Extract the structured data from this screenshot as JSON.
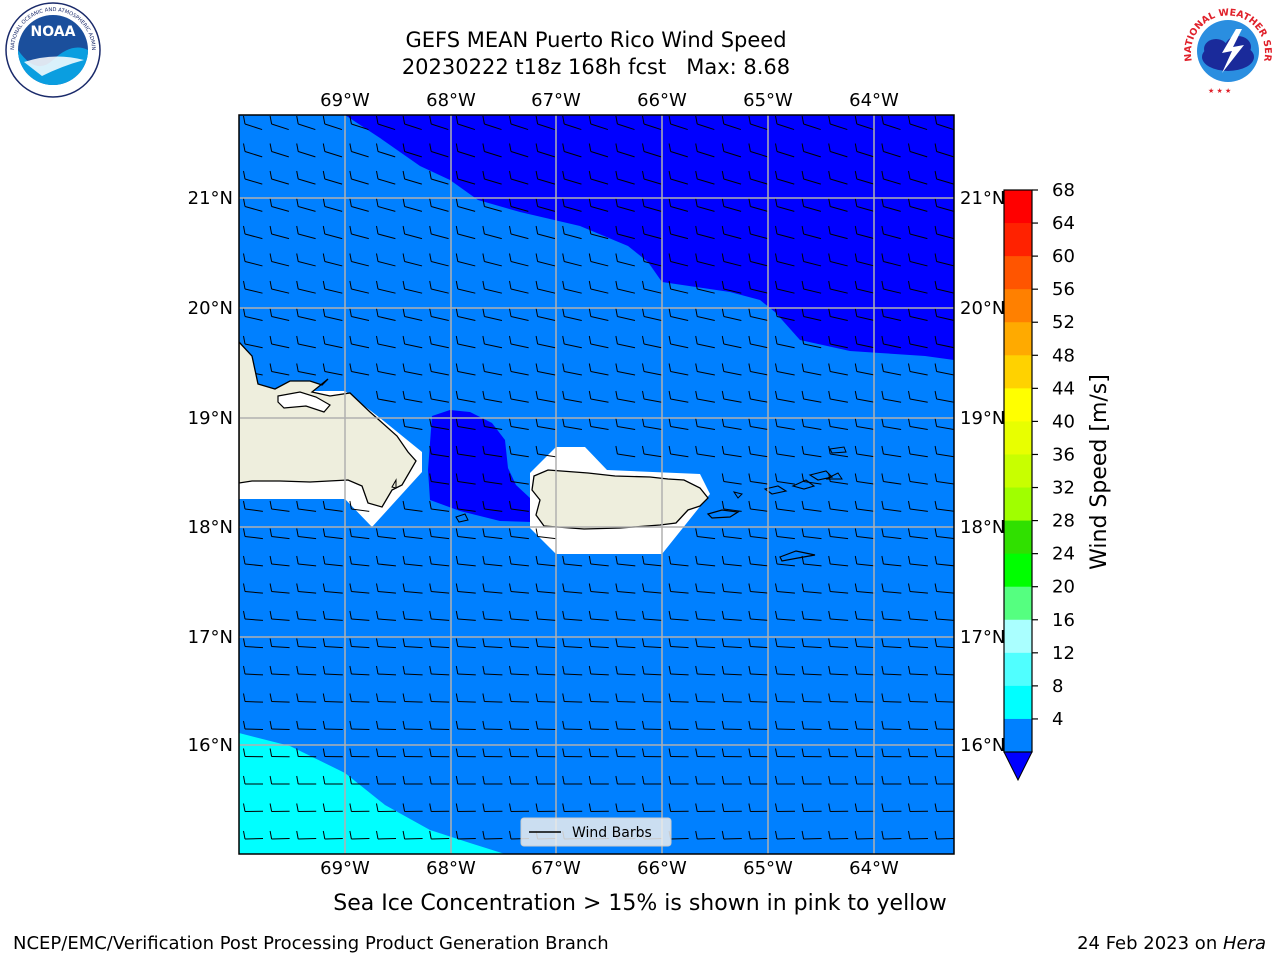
{
  "title_line1": "GEFS MEAN Puerto Rico Wind Speed",
  "title_line2": "20230222 t18z 168h fcst   Max: 8.68",
  "map": {
    "lon_labels": [
      "69°W",
      "68°W",
      "67°W",
      "66°W",
      "65°W",
      "64°W"
    ],
    "lat_labels": [
      "21°N",
      "20°N",
      "19°N",
      "18°N",
      "17°N",
      "16°N"
    ],
    "legend_label": "Wind Barbs",
    "fill_colors": {
      "band_4_8": "#0080ff",
      "band_lt4": "#0000ff",
      "band_8_12": "#00ffff",
      "land": "#eeeedd"
    }
  },
  "colorbar": {
    "label": "Wind Speed [m/s]",
    "ticks": [
      "68",
      "64",
      "60",
      "56",
      "52",
      "48",
      "44",
      "40",
      "36",
      "32",
      "28",
      "24",
      "20",
      "16",
      "12",
      "8",
      "4"
    ],
    "colors": [
      "#ff0000",
      "#ff2200",
      "#ff5500",
      "#ff8000",
      "#ffaa00",
      "#ffd200",
      "#ffff00",
      "#e8ff00",
      "#c8ff00",
      "#a0ff00",
      "#30e000",
      "#00ff00",
      "#55ff80",
      "#aaffff",
      "#50ffff",
      "#00ffff",
      "#0080ff"
    ],
    "under_color": "#0000ff"
  },
  "caption": "Sea Ice Concentration > 15% is shown in pink to yellow",
  "footer_left": "NCEP/EMC/Verification Post Processing Product Generation Branch",
  "footer_right_date": "24 Feb 2023 on ",
  "footer_right_host": "Hera",
  "logos": {
    "noaa_text": "NOAA",
    "noaa_ring": "NATIONAL OCEANIC AND ATMOSPHERIC ADMINISTRATION · U.S. DEPARTMENT OF COMMERCE",
    "nws_ring": "NATIONAL WEATHER SERVICE"
  }
}
